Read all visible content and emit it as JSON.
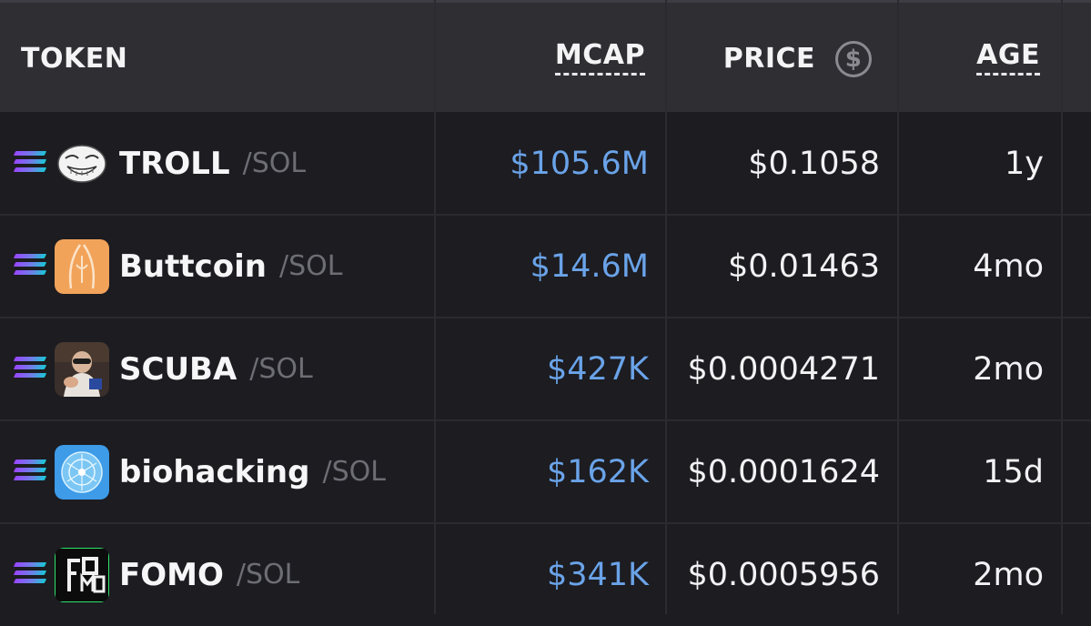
{
  "header": {
    "token": "TOKEN",
    "mcap": "MCAP",
    "price": "PRICE",
    "price_icon": "$",
    "age": "AGE"
  },
  "rows": [
    {
      "symbol": "TROLL",
      "pair": "/SOL",
      "mcap": "$105.6M",
      "price": "$0.1058",
      "age": "1y",
      "logo": "troll-face-logo",
      "chain_icon": "solana-icon"
    },
    {
      "symbol": "Buttcoin",
      "pair": "/SOL",
      "mcap": "$14.6M",
      "price": "$0.01463",
      "age": "4mo",
      "logo": "buttcoin-logo",
      "chain_icon": "solana-icon"
    },
    {
      "symbol": "SCUBA",
      "pair": "/SOL",
      "mcap": "$427K",
      "price": "$0.0004271",
      "age": "2mo",
      "logo": "scuba-photo-logo",
      "chain_icon": "solana-icon"
    },
    {
      "symbol": "biohacking",
      "pair": "/SOL",
      "mcap": "$162K",
      "price": "$0.0001624",
      "age": "15d",
      "logo": "biohacking-logo",
      "chain_icon": "solana-icon"
    },
    {
      "symbol": "FOMO",
      "pair": "/SOL",
      "mcap": "$341K",
      "price": "$0.0005956",
      "age": "2mo",
      "logo": "fomo-logo",
      "chain_icon": "solana-icon"
    }
  ],
  "colors": {
    "background": "#1c1c21",
    "header_bg": "#2e2e33",
    "mcap_text": "#6aa3e8",
    "pair_text": "#6d6d74"
  }
}
